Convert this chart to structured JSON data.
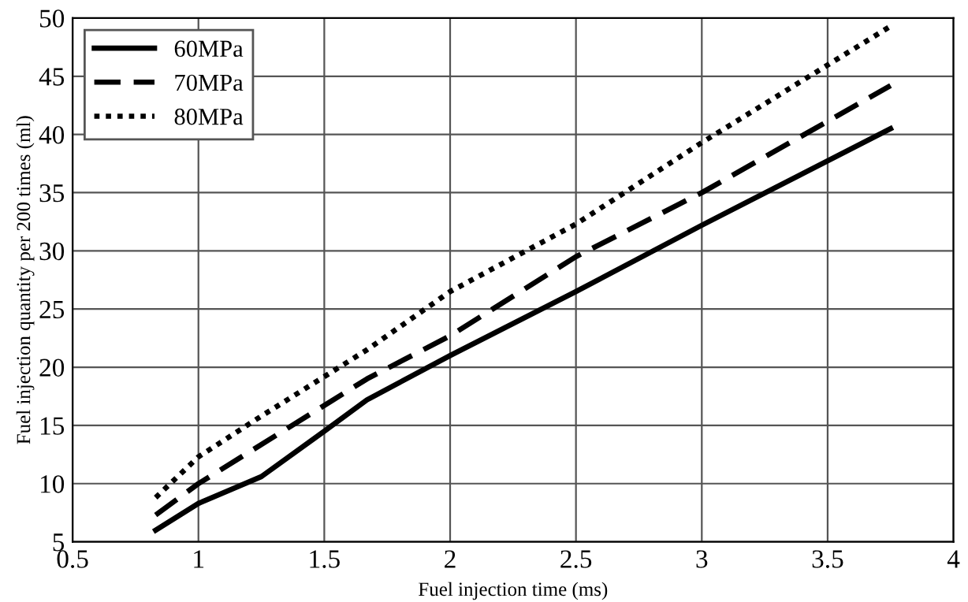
{
  "chart_data": {
    "type": "line",
    "xlabel": "Fuel injection time (ms)",
    "ylabel": "Fuel injection quantity per 200 times (ml)",
    "xlim": [
      0.5,
      4
    ],
    "xticks": [
      0.5,
      1,
      1.5,
      2,
      2.5,
      3,
      3.5,
      4
    ],
    "ylim": [
      5,
      50
    ],
    "yticks": [
      5,
      10,
      15,
      20,
      25,
      30,
      35,
      40,
      45,
      50
    ],
    "grid": true,
    "legend": "top left",
    "marker": "none",
    "series": [
      {
        "name": "60MPa",
        "color": "#000000",
        "line_style": "solid",
        "x": [
          0.83,
          1,
          1.25,
          1.5,
          1.67,
          2,
          2.5,
          3,
          3.75
        ],
        "values": [
          6,
          8.3,
          10.6,
          14.5,
          17.2,
          21,
          26.5,
          32.2,
          40.5
        ]
      },
      {
        "name": "70MPa",
        "color": "#000000",
        "line_style": "dashed",
        "x": [
          0.83,
          1,
          1.67,
          2,
          2.5,
          3,
          3.75
        ],
        "values": [
          7.3,
          10,
          19,
          22.7,
          29.5,
          35,
          44.2
        ]
      },
      {
        "name": "80MPa",
        "color": "#000000",
        "line_style": "dotted",
        "x": [
          0.83,
          1,
          1.25,
          1.67,
          2,
          2.5,
          3,
          3.75
        ],
        "values": [
          8.8,
          12.3,
          15.8,
          21.5,
          26.5,
          32.3,
          39.3,
          49.3
        ]
      }
    ]
  }
}
